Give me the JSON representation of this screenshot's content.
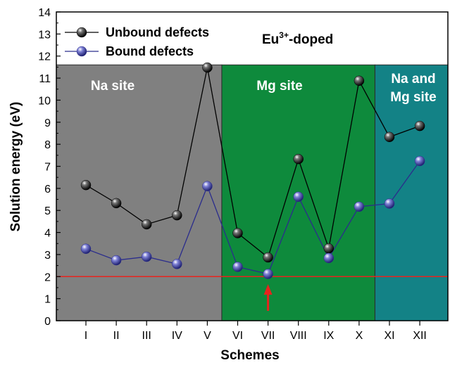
{
  "chart_data": {
    "type": "line",
    "xlabel": "Schemes",
    "ylabel": "Solution energy (eV)",
    "categories": [
      "I",
      "II",
      "III",
      "IV",
      "V",
      "VI",
      "VII",
      "VIII",
      "IX",
      "X",
      "XI",
      "XII"
    ],
    "ylim": [
      0,
      14
    ],
    "yticks": [
      0,
      1,
      2,
      3,
      4,
      5,
      6,
      7,
      8,
      9,
      10,
      11,
      12,
      13,
      14
    ],
    "series": [
      {
        "name": "Unbound defects",
        "color": "#000000",
        "values": [
          6.15,
          5.33,
          4.37,
          4.78,
          11.48,
          3.97,
          2.87,
          7.33,
          3.28,
          10.88,
          8.33,
          8.83
        ]
      },
      {
        "name": "Bound defects",
        "color": "#2b2d8c",
        "values": [
          3.26,
          2.74,
          2.9,
          2.57,
          6.1,
          2.44,
          2.12,
          5.62,
          2.84,
          5.17,
          5.31,
          7.24
        ]
      }
    ],
    "regions": [
      {
        "label_lines": [
          "Na site"
        ],
        "color": "#808080"
      },
      {
        "label_lines": [
          "Mg site"
        ],
        "color": "#0e8a3c"
      },
      {
        "label_lines": [
          "Na and",
          "Mg site"
        ],
        "color": "#138286"
      }
    ],
    "reference_line": {
      "y": 2.0,
      "color": "#e8231e"
    },
    "highlight_arrow": {
      "category": "VII",
      "color": "#e8231e"
    },
    "annotation": {
      "main": "Eu",
      "sup": "3+",
      "rest": "-doped"
    },
    "legend": "top-left"
  }
}
